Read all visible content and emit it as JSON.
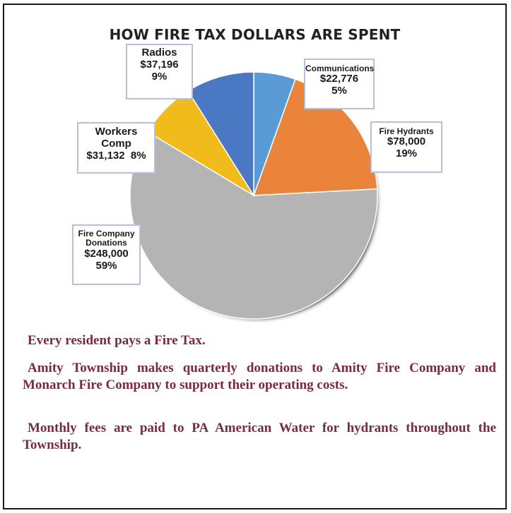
{
  "chart_data": {
    "type": "pie",
    "title": "HOW FIRE TAX DOLLARS ARE SPENT",
    "slices": [
      {
        "label": "Communications",
        "value": 22776,
        "value_label": "$22,776",
        "percent_label": "5%",
        "color": "#5b9bd5"
      },
      {
        "label": "Fire Hydrants",
        "value": 78000,
        "value_label": "$78,000",
        "percent_label": "19%",
        "color": "#e9843a"
      },
      {
        "label": "Fire Company Donations",
        "value": 248000,
        "value_label": "$248,000",
        "percent_label": "59%",
        "color": "#b4b4b4"
      },
      {
        "label": "Workers Comp",
        "value": 31132,
        "value_label": "$31,132",
        "percent_label": "8%",
        "color": "#f2bb1c"
      },
      {
        "label": "Radios",
        "value": 37196,
        "value_label": "$37,196",
        "percent_label": "9%",
        "color": "#4a78c2"
      }
    ],
    "callouts": {
      "communications": {
        "name": "Communications",
        "value": "$22,776",
        "percent": "5%"
      },
      "fire_hydrants": {
        "name": "Fire Hydrants",
        "value": "$78,000",
        "percent": "19%"
      },
      "fire_company": {
        "name_line1": "Fire Company",
        "name_line2": "Donations",
        "value": "$248,000",
        "percent": "59%"
      },
      "workers_comp": {
        "name_line1": "Workers",
        "name_line2": "Comp",
        "value_percent": "$31,132  8%"
      },
      "radios": {
        "name": "Radios",
        "value": "$37,196",
        "percent": "9%"
      }
    }
  },
  "text": {
    "p1": "Every resident pays a Fire Tax.",
    "p2": "Amity Township makes quarterly donations to Amity Fire Company and Monarch Fire Company to support their operating costs.",
    "p3": "Monthly fees are paid to PA American Water for hydrants throughout the Township."
  }
}
